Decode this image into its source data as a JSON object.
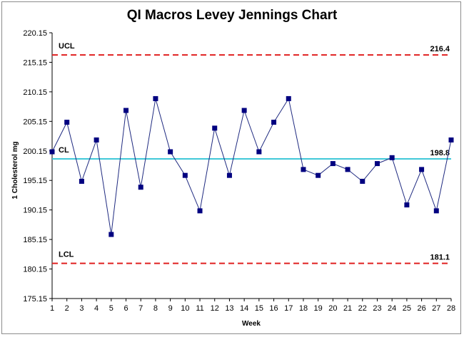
{
  "chart_data": {
    "type": "line",
    "title": "QI Macros Levey Jennings Chart",
    "xlabel": "Week",
    "ylabel": "1 Cholesterol mg",
    "ylim": [
      175.15,
      220.15
    ],
    "yticks": [
      "175.15",
      "180.15",
      "185.15",
      "190.15",
      "195.15",
      "200.15",
      "205.15",
      "210.15",
      "215.15",
      "220.15"
    ],
    "x": [
      1,
      2,
      3,
      4,
      5,
      6,
      7,
      8,
      9,
      10,
      11,
      12,
      13,
      14,
      15,
      16,
      17,
      18,
      19,
      20,
      21,
      22,
      23,
      24,
      25,
      26,
      27,
      28
    ],
    "x_tick_labels": [
      "1",
      "2",
      "3",
      "4",
      "5",
      "6",
      "7",
      "8",
      "9",
      "10",
      "11",
      "12",
      "13",
      "14",
      "15",
      "16",
      "17",
      "18",
      "19",
      "20",
      "21",
      "22",
      "23",
      "24",
      "25",
      "26",
      "27",
      "28"
    ],
    "series": [
      {
        "values": [
          200,
          205,
          195,
          202,
          186,
          207,
          194,
          209,
          200,
          196,
          190,
          204,
          196,
          207,
          200,
          205,
          209,
          197,
          196,
          198,
          197,
          195,
          198,
          199,
          191,
          197,
          190,
          202
        ],
        "color": "#1f2a80",
        "marker_color": "#000080"
      }
    ],
    "control_lines": [
      {
        "label": "UCL",
        "value": 216.4,
        "value_label": "216.4",
        "color": "#e02020",
        "style": "dashed"
      },
      {
        "label": "CL",
        "value": 198.8,
        "value_label": "198.8",
        "color": "#40c8d8",
        "style": "solid"
      },
      {
        "label": "LCL",
        "value": 181.1,
        "value_label": "181.1",
        "color": "#e02020",
        "style": "dashed"
      }
    ],
    "grid": false,
    "legend": "none"
  }
}
